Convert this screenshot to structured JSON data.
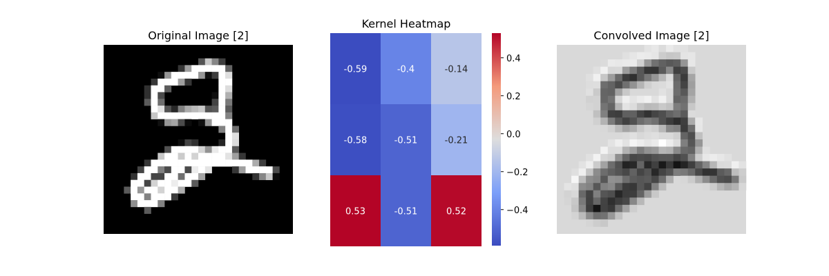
{
  "chart_data": [
    {
      "type": "image",
      "title": "Original Image [2]",
      "description_note": "",
      "grid_size": 28,
      "digit_label": "2"
    },
    {
      "type": "heatmap",
      "title": "Kernel Heatmap",
      "colormap": "coolwarm",
      "values": [
        [
          -0.59,
          -0.4,
          -0.14
        ],
        [
          -0.58,
          -0.51,
          -0.21
        ],
        [
          0.53,
          -0.51,
          0.52
        ]
      ],
      "cell_labels": [
        [
          "-0.59",
          "-0.4",
          "-0.14"
        ],
        [
          "-0.58",
          "-0.51",
          "-0.21"
        ],
        [
          "0.53",
          "-0.51",
          "0.52"
        ]
      ],
      "vmin": -0.59,
      "vmax": 0.53,
      "colorbar_ticks": [
        "0.4",
        "0.2",
        "0.0",
        "−0.2",
        "−0.4"
      ],
      "colorbar_tick_values": [
        0.4,
        0.2,
        0.0,
        -0.2,
        -0.4
      ]
    },
    {
      "type": "image",
      "title": "Convolved Image [2]",
      "grid_size": 26,
      "background": "#d9d9d9"
    }
  ]
}
